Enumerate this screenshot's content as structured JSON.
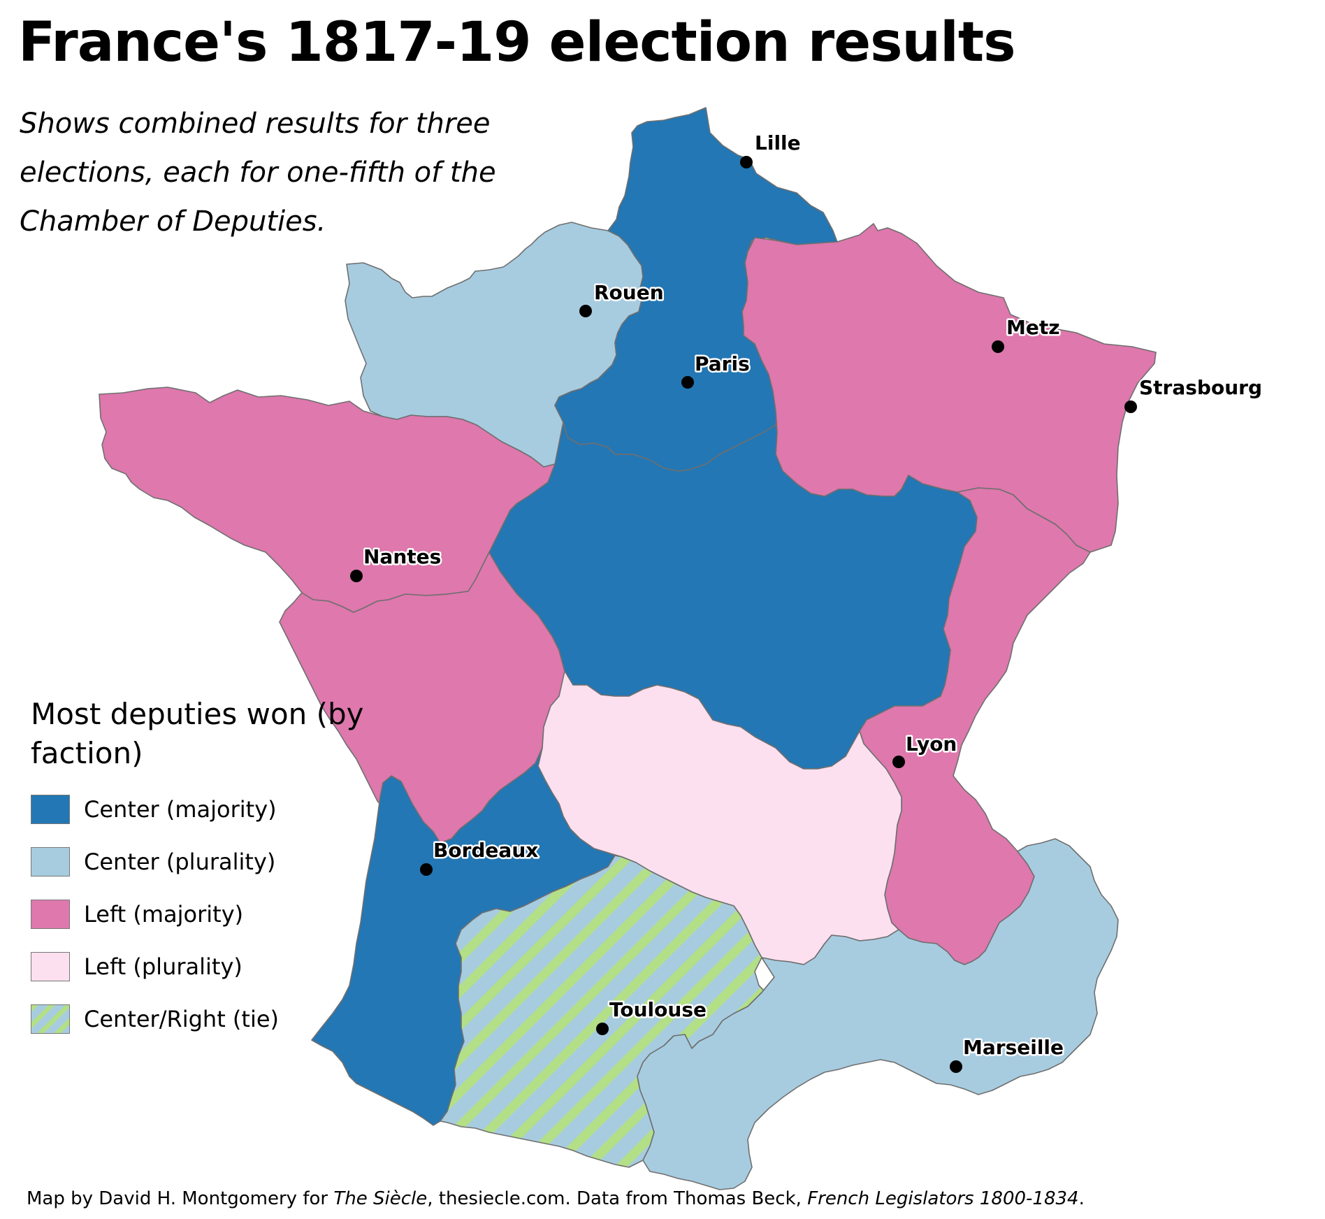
{
  "title": "France's 1817-19 election results",
  "subtitle": "Shows combined results for three elections, each for one-fifth of the Chamber of Deputies.",
  "colors": {
    "center_majority": "#2377b4",
    "center_plurality": "#a7cce0",
    "left_majority": "#de78ad",
    "left_plurality": "#fde0ef",
    "tie_stripe_a": "#a7cce0",
    "tie_stripe_b": "#b3df86"
  },
  "legend": {
    "title": "Most deputies won (by faction)",
    "items": [
      {
        "label": "Center (majority)",
        "color": "#2377b4"
      },
      {
        "label": "Center (plurality)",
        "color": "#a7cce0"
      },
      {
        "label": "Left (majority)",
        "color": "#de78ad"
      },
      {
        "label": "Left (plurality)",
        "color": "#fde0ef"
      },
      {
        "label": "Center/Right (tie)",
        "color": "striped"
      }
    ]
  },
  "cities": [
    "Lille",
    "Rouen",
    "Paris",
    "Metz",
    "Strasbourg",
    "Nantes",
    "Lyon",
    "Bordeaux",
    "Toulouse",
    "Marseille"
  ],
  "credit": {
    "text1": "Map by David H. Montgomery for ",
    "italic1": "The Siècle",
    "text2": ", thesiecle.com. Data from Thomas Beck, ",
    "italic2": "French Legislators 1800-1834",
    "text3": "."
  }
}
